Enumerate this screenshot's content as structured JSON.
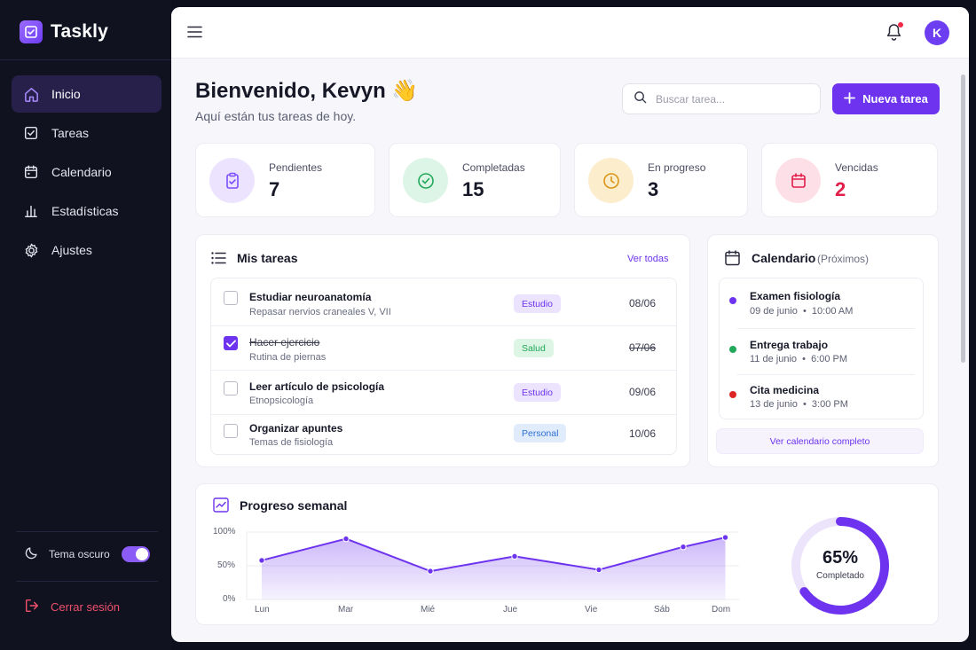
{
  "app": {
    "name": "Taskly"
  },
  "sidebar": {
    "items": [
      {
        "label": "Inicio",
        "icon": "home-icon",
        "active": true
      },
      {
        "label": "Tareas",
        "icon": "checkbox-icon",
        "active": false
      },
      {
        "label": "Calendario",
        "icon": "calendar-icon",
        "active": false
      },
      {
        "label": "Estadísticas",
        "icon": "bar-chart-icon",
        "active": false
      },
      {
        "label": "Ajustes",
        "icon": "gear-icon",
        "active": false
      }
    ],
    "theme_label": "Tema oscuro",
    "theme_on": true,
    "logout_label": "Cerrar sesión"
  },
  "header": {
    "avatar_initial": "K",
    "has_notifications": true
  },
  "welcome": {
    "title": "Bienvenido, Kevyn 👋",
    "subtitle": "Aquí están tus tareas de hoy."
  },
  "search": {
    "placeholder": "Buscar tarea..."
  },
  "new_task_label": "Nueva tarea",
  "stats": [
    {
      "label": "Pendientes",
      "value": "7",
      "color": "#7c4dff"
    },
    {
      "label": "Completadas",
      "value": "15",
      "color": "#22a85a"
    },
    {
      "label": "En progreso",
      "value": "3",
      "color": "#e0a21a"
    },
    {
      "label": "Vencidas",
      "value": "2",
      "color": "#e11d48"
    }
  ],
  "tasks": {
    "title": "Mis tareas",
    "view_all": "Ver todas",
    "items": [
      {
        "title": "Estudiar neuroanatomía",
        "subtitle": "Repasar nervios craneales V, VII",
        "tag": "Estudio",
        "date": "08/06",
        "done": false
      },
      {
        "title": "Hacer ejercicio",
        "subtitle": "Rutina de piernas",
        "tag": "Salud",
        "date": "07/06",
        "done": true
      },
      {
        "title": "Leer artículo de psicología",
        "subtitle": "Etnopsicología",
        "tag": "Estudio",
        "date": "09/06",
        "done": false
      },
      {
        "title": "Organizar apuntes",
        "subtitle": "Temas de fisiología",
        "tag": "Personal",
        "date": "10/06",
        "done": false
      }
    ]
  },
  "calendar": {
    "title": "Calendario",
    "subtitle": "(Próximos)",
    "events": [
      {
        "title": "Examen fisiología",
        "date": "09 de junio",
        "time": "10:00 AM",
        "color": "#6d33ef"
      },
      {
        "title": "Entrega trabajo",
        "date": "11 de junio",
        "time": "6:00 PM",
        "color": "#22a85a"
      },
      {
        "title": "Cita medicina",
        "date": "13 de junio",
        "time": "3:00 PM",
        "color": "#dc2626"
      }
    ],
    "view_full": "Ver calendario completo"
  },
  "progress": {
    "title": "Progreso semanal",
    "percent_label": "65%",
    "percent_caption": "Completado",
    "percent": 65
  },
  "chart_data": {
    "type": "area",
    "categories": [
      "Lun",
      "Mar",
      "Mié",
      "Jue",
      "Vie",
      "Sáb",
      "Dom"
    ],
    "y_tick_labels": [
      "100%",
      "50%",
      "0%"
    ],
    "ylim": [
      0,
      100
    ],
    "points": [
      {
        "x": 0,
        "y": 58
      },
      {
        "x": 1,
        "y": 90
      },
      {
        "x": 2,
        "y": 42
      },
      {
        "x": 3,
        "y": 64
      },
      {
        "x": 4,
        "y": 44
      },
      {
        "x": 5,
        "y": 78
      },
      {
        "x": 5.5,
        "y": 92
      }
    ],
    "color": "#6d33ef",
    "grid": true
  }
}
